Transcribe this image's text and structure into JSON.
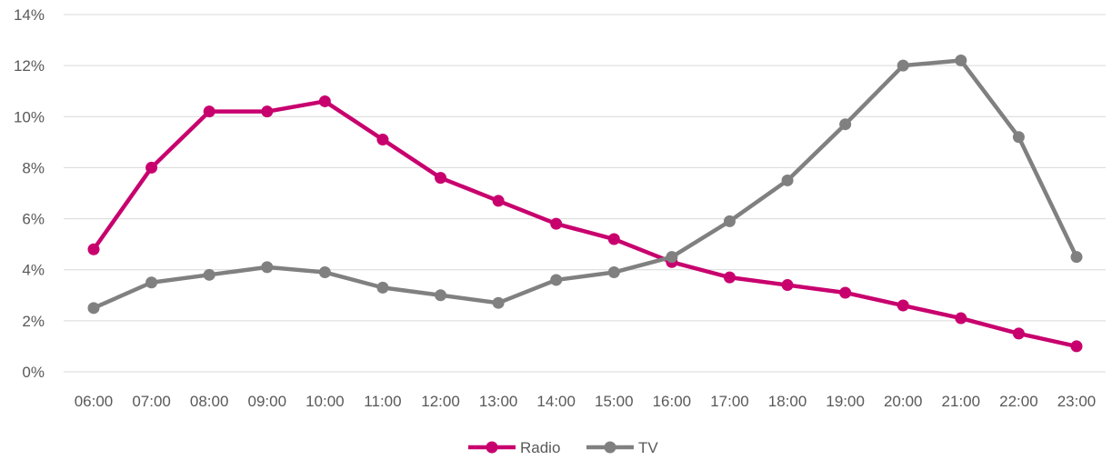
{
  "chart_data": {
    "type": "line",
    "categories": [
      "06:00",
      "07:00",
      "08:00",
      "09:00",
      "10:00",
      "11:00",
      "12:00",
      "13:00",
      "14:00",
      "15:00",
      "16:00",
      "17:00",
      "18:00",
      "19:00",
      "20:00",
      "21:00",
      "22:00",
      "23:00"
    ],
    "series": [
      {
        "name": "Radio",
        "color": "#c8006e",
        "values": [
          4.8,
          8.0,
          10.2,
          10.2,
          10.6,
          9.1,
          7.6,
          6.7,
          5.8,
          5.2,
          4.3,
          3.7,
          3.4,
          3.1,
          2.6,
          2.1,
          1.5,
          1.0
        ]
      },
      {
        "name": "TV",
        "color": "#808080",
        "values": [
          2.5,
          3.5,
          3.8,
          4.1,
          3.9,
          3.3,
          3.0,
          2.7,
          3.6,
          3.9,
          4.5,
          5.9,
          7.5,
          9.7,
          12.0,
          12.2,
          9.2,
          4.5
        ]
      }
    ],
    "yticks": [
      "0%",
      "2%",
      "4%",
      "6%",
      "8%",
      "10%",
      "12%",
      "14%"
    ],
    "ylim": [
      0,
      14
    ],
    "ystep": 2,
    "grid": true,
    "legend": "bottom-center",
    "gridColor": "#d9d9d9"
  }
}
